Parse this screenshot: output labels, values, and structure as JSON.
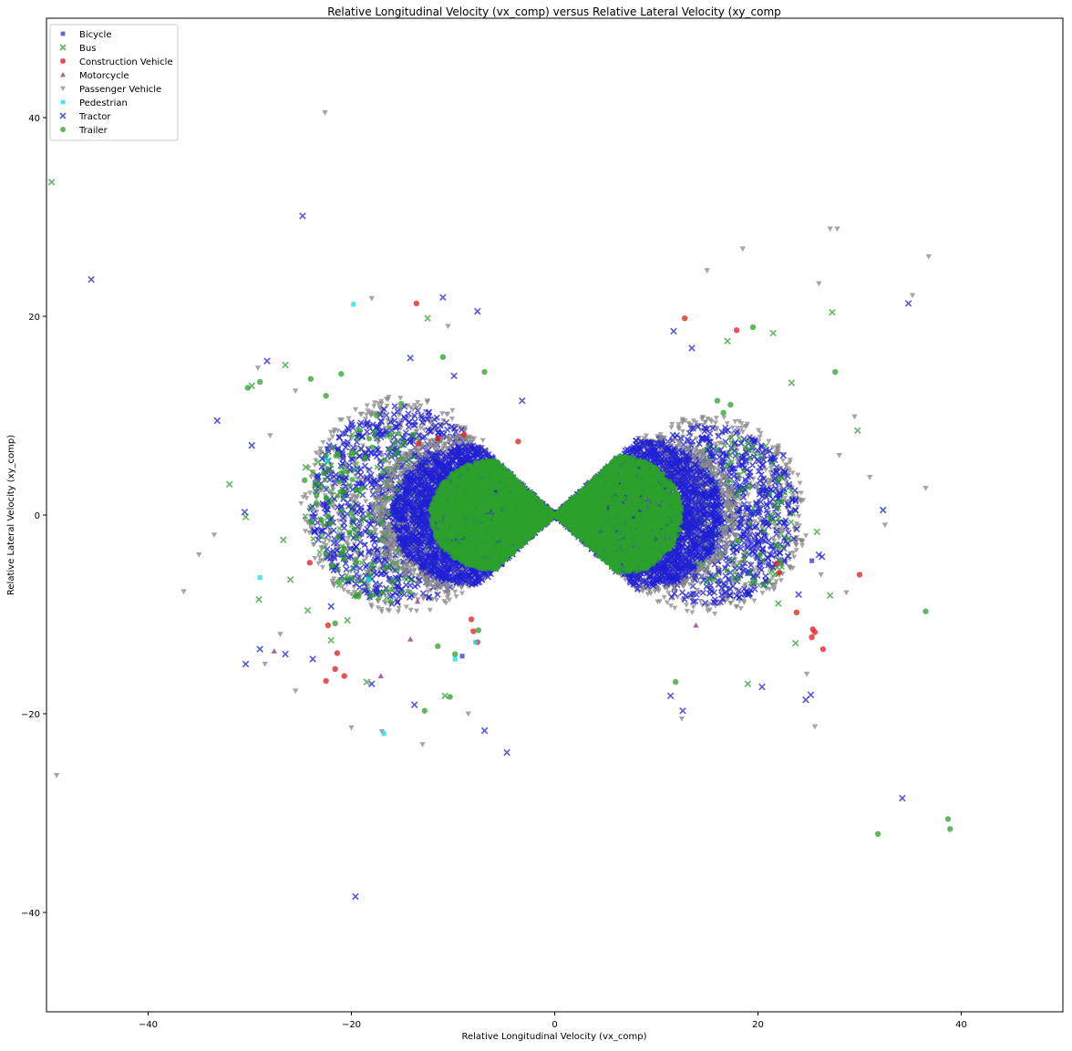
{
  "chart_data": {
    "type": "scatter",
    "title": "Relative Longitudinal Velocity (vx_comp) versus Relative Lateral Velocity (xy_comp",
    "xlabel": "Relative Longitudinal Velocity (vx_comp)",
    "ylabel": "Relative Lateral Velocity (xy_comp)",
    "xlim": [
      -50,
      50
    ],
    "ylim": [
      -50,
      50
    ],
    "xticks": [
      -40,
      -20,
      0,
      20,
      40
    ],
    "yticks": [
      -40,
      -20,
      0,
      20,
      40
    ],
    "grid": false,
    "legend_position": "top-left",
    "series": [
      {
        "name": "Bicycle",
        "marker": "square",
        "color": "#3333cc",
        "points": [
          [
            25.3,
            -4.6
          ],
          [
            13.8,
            -6.1
          ],
          [
            -18.6,
            -7.5
          ],
          [
            -9.1,
            -14.2
          ]
        ]
      },
      {
        "name": "Bus",
        "marker": "x",
        "color": "#2ca02c",
        "points": [
          [
            -49.5,
            33.5
          ],
          [
            -12.5,
            19.8
          ],
          [
            27.3,
            20.4
          ],
          [
            21.5,
            18.3
          ],
          [
            -32.0,
            3.1
          ],
          [
            -30.4,
            -0.2
          ],
          [
            -26.5,
            15.1
          ],
          [
            -29.8,
            13.0
          ],
          [
            29.8,
            8.5
          ],
          [
            25.8,
            -1.7
          ],
          [
            27.1,
            -8.1
          ],
          [
            -29.1,
            -8.5
          ],
          [
            -18.5,
            -16.8
          ],
          [
            -22.0,
            -12.6
          ],
          [
            -24.3,
            -9.6
          ],
          [
            19.0,
            -17.0
          ],
          [
            22.0,
            -8.9
          ],
          [
            23.7,
            -12.9
          ],
          [
            -10.8,
            -18.2
          ],
          [
            -26.7,
            -2.5
          ],
          [
            -24.5,
            4.8
          ],
          [
            17.0,
            17.5
          ],
          [
            -20.4,
            -10.6
          ],
          [
            23.3,
            13.3
          ],
          [
            -26.0,
            -6.5
          ]
        ]
      },
      {
        "name": "Construction Vehicle",
        "marker": "circle",
        "color": "#e31a1c",
        "points": [
          [
            -13.6,
            21.3
          ],
          [
            12.8,
            19.8
          ],
          [
            17.9,
            18.6
          ],
          [
            30.0,
            -6.0
          ],
          [
            25.4,
            -11.5
          ],
          [
            25.6,
            -11.8
          ],
          [
            26.4,
            -13.5
          ],
          [
            25.3,
            -12.3
          ],
          [
            23.8,
            -9.8
          ],
          [
            22.1,
            -5.8
          ],
          [
            21.8,
            -4.9
          ],
          [
            -22.5,
            -16.7
          ],
          [
            -20.7,
            -16.2
          ],
          [
            -21.6,
            -15.5
          ],
          [
            -21.4,
            -13.9
          ],
          [
            -22.3,
            -11.1
          ],
          [
            -8.0,
            -11.7
          ],
          [
            -8.2,
            -10.5
          ],
          [
            -7.6,
            -12.8
          ],
          [
            -24.1,
            -4.8
          ],
          [
            -13.4,
            7.2
          ],
          [
            -11.5,
            7.7
          ],
          [
            -8.9,
            8.1
          ],
          [
            -3.6,
            7.4
          ]
        ]
      },
      {
        "name": "Motorcycle",
        "marker": "triangle-up",
        "color": "#8e2d8e",
        "points": [
          [
            -27.6,
            -13.7
          ],
          [
            -13.5,
            -8.7
          ],
          [
            13.9,
            -11.1
          ],
          [
            -17.1,
            -16.2
          ],
          [
            -14.2,
            -12.5
          ]
        ]
      },
      {
        "name": "Passenger Vehicle",
        "marker": "triangle-down",
        "color": "#888888",
        "points": [
          [
            -22.6,
            40.5
          ],
          [
            -49.0,
            -26.2
          ],
          [
            27.1,
            28.8
          ],
          [
            27.8,
            28.8
          ],
          [
            18.5,
            26.8
          ],
          [
            36.8,
            26.0
          ],
          [
            15.0,
            24.6
          ],
          [
            26.0,
            23.3
          ],
          [
            35.2,
            22.1
          ],
          [
            -36.5,
            -7.7
          ],
          [
            -35.0,
            -4.0
          ],
          [
            -33.5,
            -2.0
          ],
          [
            -20.0,
            -21.4
          ],
          [
            -17.0,
            -21.8
          ],
          [
            -13.0,
            -23.1
          ],
          [
            -8.5,
            -20.0
          ],
          [
            -25.5,
            -17.7
          ],
          [
            12.5,
            -20.5
          ],
          [
            25.6,
            -21.3
          ],
          [
            31.0,
            3.8
          ],
          [
            32.5,
            -1.0
          ],
          [
            36.5,
            2.7
          ],
          [
            29.5,
            9.9
          ],
          [
            28.0,
            6.0
          ],
          [
            24.8,
            -16.0
          ],
          [
            -28.5,
            -15.0
          ],
          [
            -27.0,
            -12.0
          ],
          [
            -18.0,
            21.8
          ],
          [
            -10.5,
            19.0
          ],
          [
            -29.2,
            14.8
          ],
          [
            -25.5,
            12.5
          ],
          [
            -28.0,
            8.0
          ],
          [
            28.7,
            -7.8
          ],
          [
            26.2,
            -6.0
          ]
        ]
      },
      {
        "name": "Pedestrian",
        "marker": "square",
        "color": "#00e5e5",
        "points": [
          [
            -19.8,
            21.2
          ],
          [
            -29.0,
            -6.3
          ],
          [
            -16.8,
            -22.0
          ],
          [
            -9.8,
            -14.5
          ],
          [
            -7.8,
            -12.8
          ],
          [
            -22.4,
            5.5
          ],
          [
            -18.3,
            -6.5
          ]
        ]
      },
      {
        "name": "Tractor",
        "marker": "x",
        "color": "#1f1fd6",
        "points": [
          [
            -45.6,
            23.7
          ],
          [
            -24.8,
            30.1
          ],
          [
            -19.6,
            -38.4
          ],
          [
            -4.7,
            -23.9
          ],
          [
            34.2,
            -28.5
          ],
          [
            34.8,
            21.3
          ],
          [
            32.3,
            0.5
          ],
          [
            -33.2,
            9.5
          ],
          [
            -30.5,
            0.3
          ],
          [
            -30.4,
            -15.0
          ],
          [
            -29.0,
            -13.5
          ],
          [
            -28.3,
            15.5
          ],
          [
            -29.8,
            7.0
          ],
          [
            -11.0,
            21.9
          ],
          [
            -7.6,
            20.5
          ],
          [
            -3.2,
            11.5
          ],
          [
            25.2,
            -18.1
          ],
          [
            24.7,
            -18.6
          ],
          [
            20.4,
            -17.3
          ],
          [
            12.6,
            -19.7
          ],
          [
            11.4,
            -18.2
          ],
          [
            26.3,
            -4.2
          ],
          [
            26.0,
            -4.0
          ],
          [
            -26.5,
            -14.0
          ],
          [
            -13.8,
            -19.1
          ],
          [
            -6.9,
            -21.7
          ],
          [
            11.7,
            18.5
          ],
          [
            13.5,
            16.8
          ],
          [
            -9.9,
            14.0
          ],
          [
            -14.2,
            15.8
          ],
          [
            -23.8,
            -14.5
          ],
          [
            -18.0,
            -17.0
          ],
          [
            22.5,
            6.0
          ],
          [
            24.0,
            -8.0
          ],
          [
            -20.2,
            5.0
          ],
          [
            -22.0,
            -9.2
          ]
        ]
      },
      {
        "name": "Trailer",
        "marker": "circle",
        "color": "#2ca02c",
        "points": [
          [
            38.7,
            -30.6
          ],
          [
            38.9,
            -31.6
          ],
          [
            31.8,
            -32.1
          ],
          [
            36.5,
            -9.7
          ],
          [
            27.6,
            14.4
          ],
          [
            19.5,
            18.9
          ],
          [
            -30.2,
            12.8
          ],
          [
            -29.0,
            13.4
          ],
          [
            -24.0,
            13.7
          ],
          [
            -22.5,
            12.0
          ],
          [
            -21.0,
            14.2
          ],
          [
            -11.0,
            15.9
          ],
          [
            -6.9,
            14.4
          ],
          [
            -12.8,
            -19.7
          ],
          [
            -11.5,
            -13.2
          ],
          [
            -9.8,
            -14.0
          ],
          [
            -7.5,
            -11.6
          ],
          [
            -10.3,
            -18.3
          ],
          [
            16.0,
            11.5
          ],
          [
            17.3,
            11.1
          ],
          [
            16.6,
            10.3
          ],
          [
            22.0,
            3.5
          ],
          [
            22.3,
            1.4
          ],
          [
            20.2,
            -4.0
          ],
          [
            11.9,
            -16.8
          ],
          [
            -21.6,
            -10.9
          ],
          [
            -22.5,
            6.0
          ],
          [
            -24.6,
            3.5
          ],
          [
            -17.5,
            10.0
          ],
          [
            -15.1,
            11.2
          ]
        ]
      }
    ]
  }
}
